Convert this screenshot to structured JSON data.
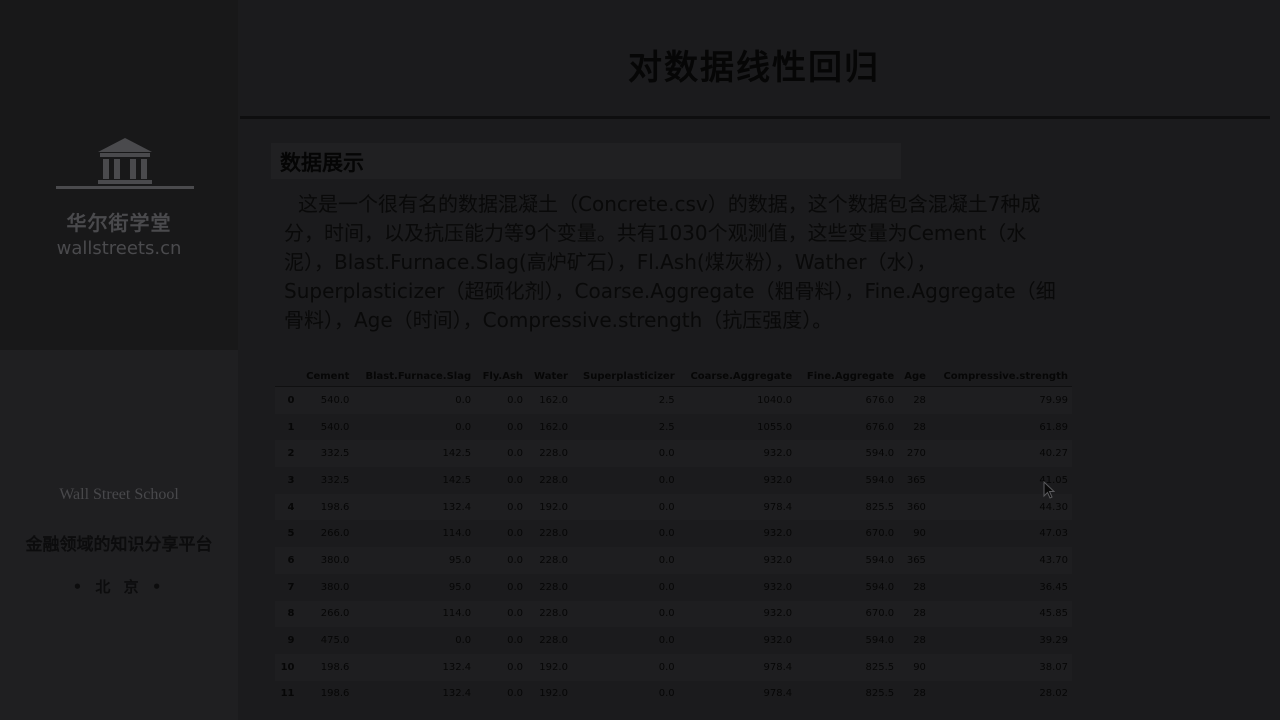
{
  "sidebar": {
    "brand_cn": "华尔街学堂",
    "brand_en": "wallstreets.cn",
    "school_en": "Wall Street School",
    "slogan": "金融领域的知识分享平台",
    "city": "• 北 京 •"
  },
  "slide": {
    "title": "对数据线性回归",
    "section_heading": "数据展示",
    "intro": "这是一个很有名的数据混凝土（Concrete.csv）的数据，这个数据包含混凝土7种成分，时间，以及抗压能力等9个变量。共有1030个观测值，这些变量为Cement（水泥），Blast.Furnace.Slag(高炉矿石），Fl.Ash(煤灰粉），Wather（水），Superplasticizer（超硕化剂），Coarse.Aggregate（粗骨料），Fine.Aggregate（细骨料），Age（时间），Compressive.strength（抗压强度）。"
  },
  "table": {
    "columns": [
      "",
      "Cement",
      "Blast.Furnace.Slag",
      "Fly.Ash",
      "Water",
      "Superplasticizer",
      "Coarse.Aggregate",
      "Fine.Aggregate",
      "Age",
      "Compressive.strength"
    ],
    "rows": [
      [
        "0",
        "540.0",
        "0.0",
        "0.0",
        "162.0",
        "2.5",
        "1040.0",
        "676.0",
        "28",
        "79.99"
      ],
      [
        "1",
        "540.0",
        "0.0",
        "0.0",
        "162.0",
        "2.5",
        "1055.0",
        "676.0",
        "28",
        "61.89"
      ],
      [
        "2",
        "332.5",
        "142.5",
        "0.0",
        "228.0",
        "0.0",
        "932.0",
        "594.0",
        "270",
        "40.27"
      ],
      [
        "3",
        "332.5",
        "142.5",
        "0.0",
        "228.0",
        "0.0",
        "932.0",
        "594.0",
        "365",
        "41.05"
      ],
      [
        "4",
        "198.6",
        "132.4",
        "0.0",
        "192.0",
        "0.0",
        "978.4",
        "825.5",
        "360",
        "44.30"
      ],
      [
        "5",
        "266.0",
        "114.0",
        "0.0",
        "228.0",
        "0.0",
        "932.0",
        "670.0",
        "90",
        "47.03"
      ],
      [
        "6",
        "380.0",
        "95.0",
        "0.0",
        "228.0",
        "0.0",
        "932.0",
        "594.0",
        "365",
        "43.70"
      ],
      [
        "7",
        "380.0",
        "95.0",
        "0.0",
        "228.0",
        "0.0",
        "932.0",
        "594.0",
        "28",
        "36.45"
      ],
      [
        "8",
        "266.0",
        "114.0",
        "0.0",
        "228.0",
        "0.0",
        "932.0",
        "670.0",
        "28",
        "45.85"
      ],
      [
        "9",
        "475.0",
        "0.0",
        "0.0",
        "228.0",
        "0.0",
        "932.0",
        "594.0",
        "28",
        "39.29"
      ],
      [
        "10",
        "198.6",
        "132.4",
        "0.0",
        "192.0",
        "0.0",
        "978.4",
        "825.5",
        "90",
        "38.07"
      ],
      [
        "11",
        "198.6",
        "132.4",
        "0.0",
        "192.0",
        "0.0",
        "978.4",
        "825.5",
        "28",
        "28.02"
      ]
    ]
  },
  "icons": {
    "logo": "bank-building-icon",
    "pointer": "mouse-cursor-icon"
  },
  "colors": {
    "background": "#1b1b1d",
    "sidebar_logo_panel": "#181819",
    "logo_gray": "#4a4a4d"
  }
}
